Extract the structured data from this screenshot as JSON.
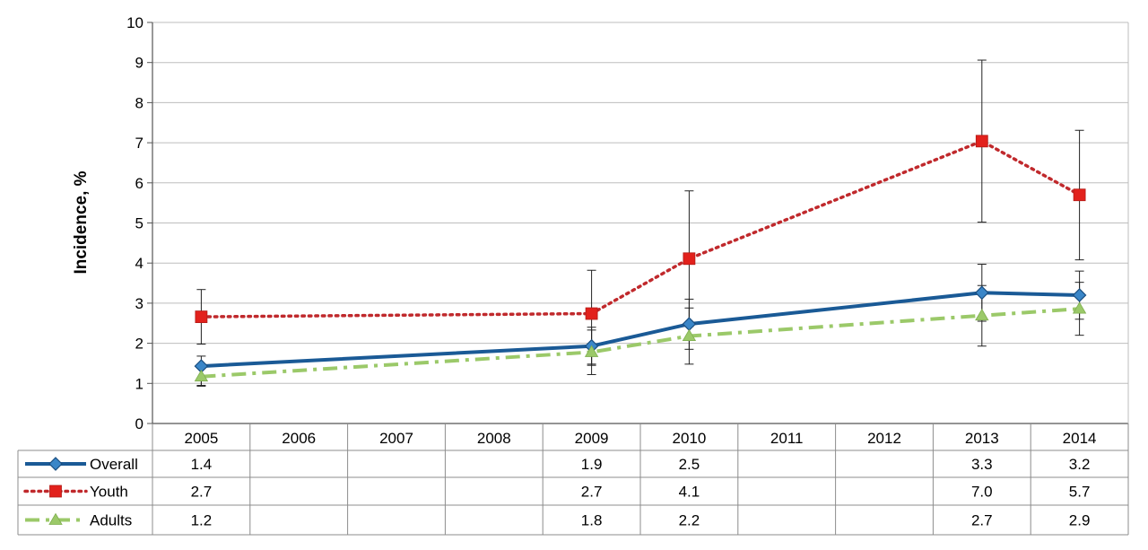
{
  "chart_data": {
    "type": "line",
    "ylabel": "Incidence, %",
    "ylim": [
      0,
      10
    ],
    "yticks": [
      "0",
      "1",
      "2",
      "3",
      "4",
      "5",
      "6",
      "7",
      "8",
      "9",
      "10"
    ],
    "grid": true,
    "legend_placement": "data-table-left",
    "categories": [
      "2005",
      "2006",
      "2007",
      "2008",
      "2009",
      "2010",
      "2011",
      "2012",
      "2013",
      "2014"
    ],
    "series": [
      {
        "name": "Overall",
        "color": "#1a5a96",
        "marker": "diamond",
        "line_style": "solid",
        "points": [
          {
            "x": "2005",
            "y": 1.43,
            "err_low": 0.95,
            "err_high": 1.68,
            "label": "1.4"
          },
          {
            "x": "2009",
            "y": 1.93,
            "err_low": 1.45,
            "err_high": 2.4,
            "label": "1.9"
          },
          {
            "x": "2010",
            "y": 2.48,
            "err_low": 1.85,
            "err_high": 3.1,
            "label": "2.5"
          },
          {
            "x": "2013",
            "y": 3.26,
            "err_low": 2.55,
            "err_high": 3.97,
            "label": "3.3"
          },
          {
            "x": "2014",
            "y": 3.2,
            "err_low": 2.6,
            "err_high": 3.8,
            "label": "3.2"
          }
        ]
      },
      {
        "name": "Youth",
        "color": "#c0292c",
        "marker": "square",
        "line_style": "dotted",
        "points": [
          {
            "x": "2005",
            "y": 2.66,
            "err_low": 1.98,
            "err_high": 3.34,
            "label": "2.7"
          },
          {
            "x": "2009",
            "y": 2.74,
            "err_low": 1.48,
            "err_high": 3.82,
            "label": "2.7"
          },
          {
            "x": "2010",
            "y": 4.11,
            "err_low": 2.42,
            "err_high": 5.8,
            "label": "4.1"
          },
          {
            "x": "2013",
            "y": 7.04,
            "err_low": 5.02,
            "err_high": 9.06,
            "label": "7.0"
          },
          {
            "x": "2014",
            "y": 5.7,
            "err_low": 4.08,
            "err_high": 7.31,
            "label": "5.7"
          }
        ]
      },
      {
        "name": "Adults",
        "color": "#9bc969",
        "marker": "triangle",
        "line_style": "dashdot",
        "points": [
          {
            "x": "2005",
            "y": 1.17,
            "err_low": 0.93,
            "err_high": 1.42,
            "label": "1.2"
          },
          {
            "x": "2009",
            "y": 1.78,
            "err_low": 1.22,
            "err_high": 2.33,
            "label": "1.8"
          },
          {
            "x": "2010",
            "y": 2.18,
            "err_low": 1.48,
            "err_high": 2.88,
            "label": "2.2"
          },
          {
            "x": "2013",
            "y": 2.69,
            "err_low": 1.93,
            "err_high": 3.44,
            "label": "2.7"
          },
          {
            "x": "2014",
            "y": 2.86,
            "err_low": 2.2,
            "err_high": 3.52,
            "label": "2.9"
          }
        ]
      }
    ]
  }
}
